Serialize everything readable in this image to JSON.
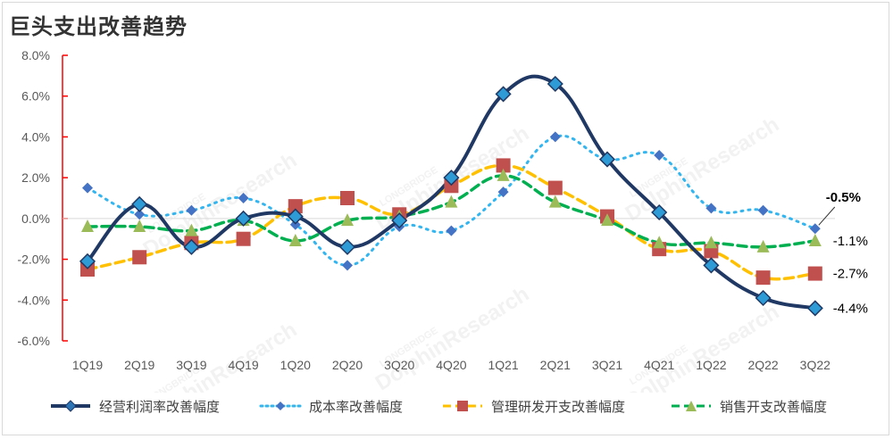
{
  "title": "巨头支出改善趋势",
  "chart_data": {
    "type": "line",
    "categories": [
      "1Q19",
      "2Q19",
      "3Q19",
      "4Q19",
      "1Q20",
      "2Q20",
      "3Q20",
      "4Q20",
      "1Q21",
      "2Q21",
      "3Q21",
      "4Q21",
      "1Q22",
      "2Q22",
      "3Q22"
    ],
    "ylim": [
      -6,
      8
    ],
    "yticks": [
      "8.0%",
      "6.0%",
      "4.0%",
      "2.0%",
      "0.0%",
      "-2.0%",
      "-4.0%",
      "-6.0%"
    ],
    "series": [
      {
        "name": "经营利润率改善幅度",
        "color": "#1f3864",
        "style": "solid",
        "marker": "diamond",
        "values": [
          -2.1,
          0.7,
          -1.4,
          0.0,
          0.1,
          -1.4,
          -0.1,
          2.0,
          6.1,
          6.6,
          2.9,
          0.3,
          -2.3,
          -3.9,
          -4.4
        ]
      },
      {
        "name": "成本率改善幅度",
        "color": "#33b5f0",
        "marker_color": "#4472c4",
        "style": "dotted",
        "marker": "diamond-small",
        "values": [
          1.5,
          0.2,
          0.4,
          1.0,
          -0.3,
          -2.3,
          -0.4,
          -0.6,
          1.3,
          4.0,
          2.9,
          3.1,
          0.5,
          0.4,
          -0.5
        ]
      },
      {
        "name": "管理研发开支改善幅度",
        "color": "#ffc000",
        "marker_color": "#c0504d",
        "style": "dashed",
        "marker": "square",
        "values": [
          -2.5,
          -1.9,
          -1.2,
          -1.0,
          0.6,
          1.0,
          0.2,
          1.6,
          2.6,
          1.5,
          0.1,
          -1.5,
          -1.6,
          -2.9,
          -2.7
        ]
      },
      {
        "name": "销售开支改善幅度",
        "color": "#00b050",
        "marker_color": "#9bbb59",
        "style": "dashed",
        "marker": "triangle",
        "values": [
          -0.4,
          -0.4,
          -0.6,
          -0.1,
          -1.1,
          -0.1,
          0.1,
          0.8,
          2.1,
          0.8,
          -0.1,
          -1.2,
          -1.2,
          -1.4,
          -1.1
        ]
      }
    ],
    "end_labels": [
      "-4.4%",
      "-0.5%",
      "-2.7%",
      "-1.1%"
    ],
    "grid": false,
    "legend_position": "bottom"
  },
  "watermark": {
    "brand": "LONGBRIDGE",
    "text": "DolphinResearch"
  }
}
